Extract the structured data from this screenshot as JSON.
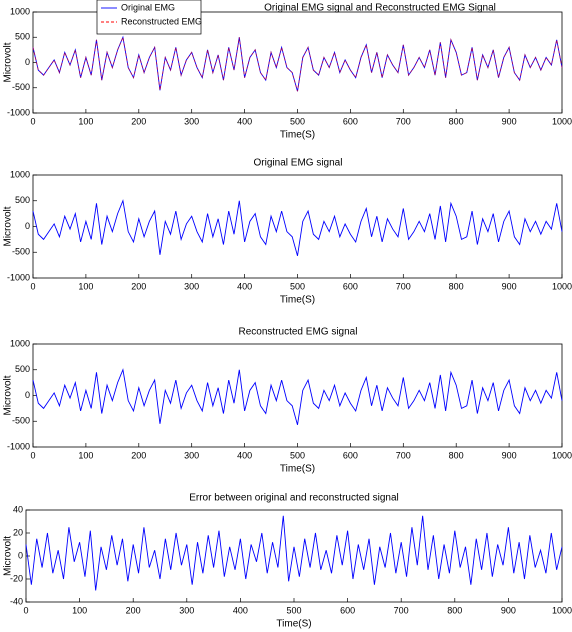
{
  "chart_data": [
    {
      "type": "line",
      "title": "Original EMG signal and Reconstructed EMG Signal",
      "xlabel": "Time(S)",
      "ylabel": "Microvolt",
      "legend": "upper left",
      "x": [
        0,
        10,
        20,
        30,
        40,
        50,
        60,
        70,
        80,
        90,
        100,
        110,
        120,
        130,
        140,
        150,
        160,
        170,
        180,
        190,
        200,
        210,
        220,
        230,
        240,
        250,
        260,
        270,
        280,
        290,
        300,
        310,
        320,
        330,
        340,
        350,
        360,
        370,
        380,
        390,
        400,
        410,
        420,
        430,
        440,
        450,
        460,
        470,
        480,
        490,
        500,
        510,
        520,
        530,
        540,
        550,
        560,
        570,
        580,
        590,
        600,
        610,
        620,
        630,
        640,
        650,
        660,
        670,
        680,
        690,
        700,
        710,
        720,
        730,
        740,
        750,
        760,
        770,
        780,
        790,
        800,
        810,
        820,
        830,
        840,
        850,
        860,
        870,
        880,
        890,
        900,
        910,
        920,
        930,
        940,
        950,
        960,
        970,
        980,
        990,
        1000
      ],
      "series": [
        {
          "name": "Original EMG",
          "color": "#0000ff",
          "dash": false,
          "values": [
            300,
            -150,
            -250,
            -100,
            50,
            -200,
            200,
            -50,
            250,
            -300,
            100,
            -250,
            450,
            -350,
            200,
            -100,
            250,
            500,
            -100,
            -300,
            150,
            -200,
            100,
            300,
            -550,
            100,
            -150,
            300,
            -250,
            50,
            200,
            -100,
            -300,
            250,
            -200,
            150,
            -350,
            300,
            -150,
            500,
            -300,
            100,
            250,
            -200,
            -350,
            200,
            -100,
            300,
            -100,
            -200,
            -570,
            100,
            300,
            -150,
            -250,
            100,
            -100,
            200,
            -200,
            50,
            -150,
            -300,
            100,
            350,
            -200,
            200,
            -300,
            150,
            -50,
            -200,
            350,
            -250,
            -100,
            100,
            -100,
            250,
            -250,
            400,
            -300,
            450,
            200,
            -250,
            -200,
            300,
            -350,
            150,
            -100,
            250,
            -300,
            100,
            300,
            -200,
            -350,
            150,
            -100,
            100,
            -150,
            100,
            -50,
            450,
            -100
          ]
        },
        {
          "name": "Reconstructed EMG",
          "color": "#ff0000",
          "dash": true,
          "values": [
            300,
            -150,
            -250,
            -100,
            50,
            -200,
            200,
            -50,
            250,
            -300,
            100,
            -250,
            450,
            -350,
            200,
            -100,
            250,
            500,
            -100,
            -300,
            150,
            -200,
            100,
            300,
            -550,
            100,
            -150,
            300,
            -250,
            50,
            200,
            -100,
            -300,
            250,
            -200,
            150,
            -350,
            300,
            -150,
            500,
            -300,
            100,
            250,
            -200,
            -350,
            200,
            -100,
            300,
            -100,
            -200,
            -570,
            100,
            300,
            -150,
            -250,
            100,
            -100,
            200,
            -200,
            50,
            -150,
            -300,
            100,
            350,
            -200,
            200,
            -300,
            150,
            -50,
            -200,
            350,
            -250,
            -100,
            100,
            -100,
            250,
            -250,
            400,
            -300,
            450,
            200,
            -250,
            -200,
            300,
            -350,
            150,
            -100,
            250,
            -300,
            100,
            300,
            -200,
            -350,
            150,
            -100,
            100,
            -150,
            100,
            -50,
            450,
            -100
          ]
        }
      ],
      "xlim": [
        0,
        1000
      ],
      "xticks": [
        0,
        100,
        200,
        300,
        400,
        500,
        600,
        700,
        800,
        900,
        1000
      ],
      "ylim": [
        -1000,
        1000
      ],
      "yticks": [
        -1000,
        -500,
        0,
        500,
        1000
      ]
    },
    {
      "type": "line",
      "title": "Original EMG signal",
      "xlabel": "Time(S)",
      "ylabel": "Microvolt",
      "x": [
        0,
        10,
        20,
        30,
        40,
        50,
        60,
        70,
        80,
        90,
        100,
        110,
        120,
        130,
        140,
        150,
        160,
        170,
        180,
        190,
        200,
        210,
        220,
        230,
        240,
        250,
        260,
        270,
        280,
        290,
        300,
        310,
        320,
        330,
        340,
        350,
        360,
        370,
        380,
        390,
        400,
        410,
        420,
        430,
        440,
        450,
        460,
        470,
        480,
        490,
        500,
        510,
        520,
        530,
        540,
        550,
        560,
        570,
        580,
        590,
        600,
        610,
        620,
        630,
        640,
        650,
        660,
        670,
        680,
        690,
        700,
        710,
        720,
        730,
        740,
        750,
        760,
        770,
        780,
        790,
        800,
        810,
        820,
        830,
        840,
        850,
        860,
        870,
        880,
        890,
        900,
        910,
        920,
        930,
        940,
        950,
        960,
        970,
        980,
        990,
        1000
      ],
      "series": [
        {
          "color": "#0000ff",
          "values": [
            300,
            -150,
            -250,
            -100,
            50,
            -200,
            200,
            -50,
            250,
            -300,
            100,
            -250,
            450,
            -350,
            200,
            -100,
            250,
            500,
            -100,
            -300,
            150,
            -200,
            100,
            300,
            -550,
            100,
            -150,
            300,
            -250,
            50,
            200,
            -100,
            -300,
            250,
            -200,
            150,
            -350,
            300,
            -150,
            500,
            -300,
            100,
            250,
            -200,
            -350,
            200,
            -100,
            300,
            -100,
            -200,
            -570,
            100,
            300,
            -150,
            -250,
            100,
            -100,
            200,
            -200,
            50,
            -150,
            -300,
            100,
            350,
            -200,
            200,
            -300,
            150,
            -50,
            -200,
            350,
            -250,
            -100,
            100,
            -100,
            250,
            -250,
            400,
            -300,
            450,
            200,
            -250,
            -200,
            300,
            -350,
            150,
            -100,
            250,
            -300,
            100,
            300,
            -200,
            -350,
            150,
            -100,
            100,
            -150,
            100,
            -50,
            450,
            -100
          ]
        }
      ],
      "xlim": [
        0,
        1000
      ],
      "xticks": [
        0,
        100,
        200,
        300,
        400,
        500,
        600,
        700,
        800,
        900,
        1000
      ],
      "ylim": [
        -1000,
        1000
      ],
      "yticks": [
        -1000,
        -500,
        0,
        500,
        1000
      ]
    },
    {
      "type": "line",
      "title": "Reconstructed EMG signal",
      "xlabel": "Time(S)",
      "ylabel": "Microvolt",
      "x": [
        0,
        10,
        20,
        30,
        40,
        50,
        60,
        70,
        80,
        90,
        100,
        110,
        120,
        130,
        140,
        150,
        160,
        170,
        180,
        190,
        200,
        210,
        220,
        230,
        240,
        250,
        260,
        270,
        280,
        290,
        300,
        310,
        320,
        330,
        340,
        350,
        360,
        370,
        380,
        390,
        400,
        410,
        420,
        430,
        440,
        450,
        460,
        470,
        480,
        490,
        500,
        510,
        520,
        530,
        540,
        550,
        560,
        570,
        580,
        590,
        600,
        610,
        620,
        630,
        640,
        650,
        660,
        670,
        680,
        690,
        700,
        710,
        720,
        730,
        740,
        750,
        760,
        770,
        780,
        790,
        800,
        810,
        820,
        830,
        840,
        850,
        860,
        870,
        880,
        890,
        900,
        910,
        920,
        930,
        940,
        950,
        960,
        970,
        980,
        990,
        1000
      ],
      "series": [
        {
          "color": "#0000ff",
          "values": [
            300,
            -150,
            -250,
            -100,
            50,
            -200,
            200,
            -50,
            250,
            -300,
            100,
            -250,
            450,
            -350,
            200,
            -100,
            250,
            500,
            -100,
            -300,
            150,
            -200,
            100,
            300,
            -550,
            100,
            -150,
            300,
            -250,
            50,
            200,
            -100,
            -300,
            250,
            -200,
            150,
            -350,
            300,
            -150,
            500,
            -300,
            100,
            250,
            -200,
            -350,
            200,
            -100,
            300,
            -100,
            -200,
            -570,
            100,
            300,
            -150,
            -250,
            100,
            -100,
            200,
            -200,
            50,
            -150,
            -300,
            100,
            350,
            -200,
            200,
            -300,
            150,
            -50,
            -200,
            350,
            -250,
            -100,
            100,
            -100,
            250,
            -250,
            400,
            -300,
            450,
            200,
            -250,
            -200,
            300,
            -350,
            150,
            -100,
            250,
            -300,
            100,
            300,
            -200,
            -350,
            150,
            -100,
            100,
            -150,
            100,
            -50,
            450,
            -100
          ]
        }
      ],
      "xlim": [
        0,
        1000
      ],
      "xticks": [
        0,
        100,
        200,
        300,
        400,
        500,
        600,
        700,
        800,
        900,
        1000
      ],
      "ylim": [
        -1000,
        1000
      ],
      "yticks": [
        -1000,
        -500,
        0,
        500,
        1000
      ]
    },
    {
      "type": "line",
      "title": "Error between original and reconstructed signal",
      "xlabel": "Time(S)",
      "ylabel": "Microvolt",
      "x": [
        0,
        10,
        20,
        30,
        40,
        50,
        60,
        70,
        80,
        90,
        100,
        110,
        120,
        130,
        140,
        150,
        160,
        170,
        180,
        190,
        200,
        210,
        220,
        230,
        240,
        250,
        260,
        270,
        280,
        290,
        300,
        310,
        320,
        330,
        340,
        350,
        360,
        370,
        380,
        390,
        400,
        410,
        420,
        430,
        440,
        450,
        460,
        470,
        480,
        490,
        500,
        510,
        520,
        530,
        540,
        550,
        560,
        570,
        580,
        590,
        600,
        610,
        620,
        630,
        640,
        650,
        660,
        670,
        680,
        690,
        700,
        710,
        720,
        730,
        740,
        750,
        760,
        770,
        780,
        790,
        800,
        810,
        820,
        830,
        840,
        850,
        860,
        870,
        880,
        890,
        900,
        910,
        920,
        930,
        940,
        950,
        960,
        970,
        980,
        990,
        1000
      ],
      "series": [
        {
          "color": "#0000ff",
          "values": [
            10,
            -25,
            15,
            -10,
            20,
            -15,
            5,
            -20,
            25,
            -5,
            12,
            -18,
            22,
            -30,
            8,
            -12,
            18,
            -8,
            15,
            -22,
            10,
            -15,
            25,
            -10,
            5,
            -20,
            15,
            -12,
            20,
            -8,
            10,
            -25,
            12,
            -15,
            18,
            -10,
            22,
            -18,
            8,
            -12,
            15,
            -20,
            10,
            -5,
            20,
            -15,
            12,
            -10,
            35,
            -22,
            8,
            -18,
            15,
            -10,
            20,
            -12,
            5,
            -15,
            18,
            -8,
            22,
            -20,
            10,
            -12,
            15,
            -25,
            8,
            -10,
            20,
            -15,
            12,
            -18,
            25,
            -8,
            35,
            -12,
            18,
            -20,
            10,
            -15,
            22,
            -10,
            8,
            -25,
            15,
            -12,
            20,
            -18,
            10,
            -8,
            25,
            -15,
            12,
            -20,
            18,
            -10,
            5,
            -15,
            20,
            -12,
            8
          ]
        }
      ],
      "xlim": [
        0,
        1000
      ],
      "xticks": [
        0,
        100,
        200,
        300,
        400,
        500,
        600,
        700,
        800,
        900,
        1000
      ],
      "ylim": [
        -40,
        40
      ],
      "yticks": [
        -40,
        -20,
        0,
        20,
        40
      ]
    }
  ]
}
